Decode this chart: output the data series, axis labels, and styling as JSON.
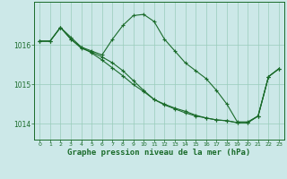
{
  "background_color": "#cce8e8",
  "grid_color": "#99ccbb",
  "line_color": "#1a6b2a",
  "marker_color": "#1a6b2a",
  "xlabel": "Graphe pression niveau de la mer (hPa)",
  "xlabel_fontsize": 6.5,
  "xlim": [
    -0.5,
    23.5
  ],
  "ylim": [
    1013.6,
    1017.1
  ],
  "yticks": [
    1014,
    1015,
    1016
  ],
  "xticks": [
    0,
    1,
    2,
    3,
    4,
    5,
    6,
    7,
    8,
    9,
    10,
    11,
    12,
    13,
    14,
    15,
    16,
    17,
    18,
    19,
    20,
    21,
    22,
    23
  ],
  "line1_x": [
    0,
    1,
    2,
    3,
    4,
    5,
    6,
    7,
    8,
    9,
    10,
    11,
    12,
    13,
    14,
    15,
    16,
    17,
    18,
    19,
    20,
    21,
    22,
    23
  ],
  "line1_y": [
    1016.1,
    1016.1,
    1016.45,
    1016.2,
    1015.95,
    1015.85,
    1015.75,
    1016.15,
    1016.5,
    1016.75,
    1016.78,
    1016.6,
    1016.15,
    1015.85,
    1015.55,
    1015.35,
    1015.15,
    1014.85,
    1014.5,
    1014.05,
    1014.05,
    1014.2,
    1015.2,
    1015.4
  ],
  "line2_x": [
    0,
    1,
    2,
    3,
    4,
    5,
    6,
    7,
    8,
    9,
    10,
    11,
    12,
    13,
    14,
    15,
    16,
    17,
    18,
    19,
    20,
    21,
    22,
    23
  ],
  "line2_y": [
    1016.1,
    1016.1,
    1016.45,
    1016.15,
    1015.95,
    1015.8,
    1015.62,
    1015.42,
    1015.22,
    1015.0,
    1014.82,
    1014.62,
    1014.48,
    1014.38,
    1014.28,
    1014.2,
    1014.15,
    1014.1,
    1014.08,
    1014.03,
    1014.03,
    1014.2,
    1015.2,
    1015.4
  ],
  "line3_x": [
    0,
    1,
    2,
    3,
    4,
    5,
    6,
    7,
    8,
    9,
    10,
    11,
    12,
    13,
    14,
    15,
    16,
    17,
    18,
    19,
    20,
    21,
    22,
    23
  ],
  "line3_y": [
    1016.1,
    1016.1,
    1016.45,
    1016.15,
    1015.92,
    1015.82,
    1015.7,
    1015.55,
    1015.35,
    1015.1,
    1014.85,
    1014.62,
    1014.5,
    1014.4,
    1014.32,
    1014.22,
    1014.15,
    1014.1,
    1014.08,
    1014.03,
    1014.03,
    1014.2,
    1015.2,
    1015.4
  ]
}
